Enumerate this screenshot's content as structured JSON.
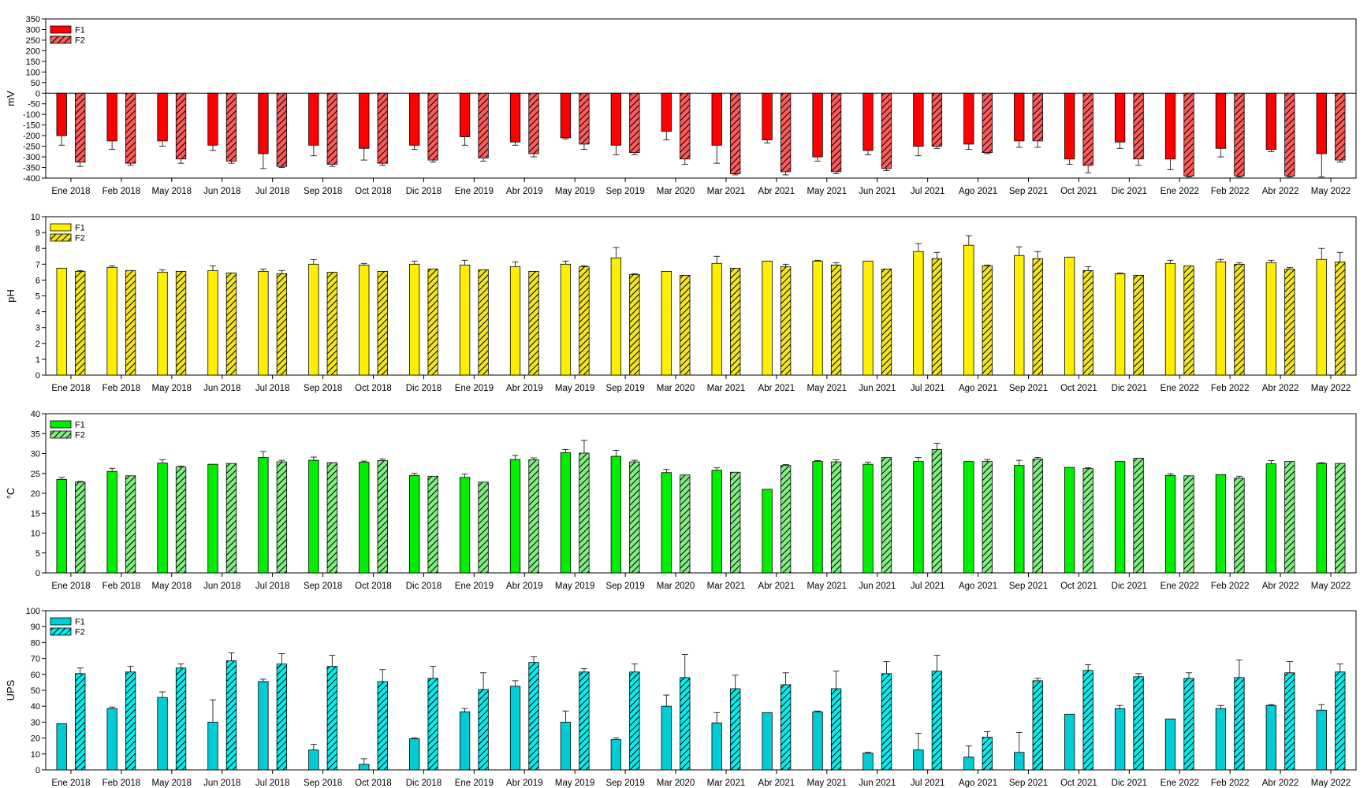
{
  "chart_data": [
    {
      "type": "bar",
      "ylabel": "mV",
      "ylim": [
        -400,
        350
      ],
      "yticks": [
        350,
        300,
        250,
        200,
        150,
        100,
        50,
        0,
        -50,
        -100,
        -150,
        -200,
        -250,
        -300,
        -350,
        -400
      ],
      "legend_position": "top-left",
      "colors": {
        "F1": "#ff0000",
        "F2": "#ff5a5a"
      },
      "categories": [
        "Ene 2018",
        "Feb 2018",
        "May 2018",
        "Jun 2018",
        "Jul 2018",
        "Sep 2018",
        "Oct 2018",
        "Dic 2018",
        "Ene 2019",
        "Abr 2019",
        "May 2019",
        "Sep 2019",
        "Mar 2020",
        "Mar 2021",
        "Abr 2021",
        "May 2021",
        "Jun 2021",
        "Jul 2021",
        "Ago 2021",
        "Sep 2021",
        "Oct 2021",
        "Dic 2021",
        "Ene 2022",
        "Feb 2022",
        "Abr 2022",
        "May 2022"
      ],
      "series": [
        {
          "name": "F1",
          "pattern": "solid",
          "values": [
            -200,
            -225,
            -225,
            -245,
            -285,
            -245,
            -260,
            -245,
            -205,
            -230,
            -210,
            -245,
            -180,
            -245,
            -220,
            -300,
            -270,
            -250,
            -240,
            -225,
            -310,
            -230,
            -310,
            -260,
            -265,
            -285
          ],
          "errors": [
            45,
            40,
            25,
            25,
            70,
            50,
            55,
            20,
            40,
            15,
            5,
            45,
            40,
            85,
            15,
            20,
            20,
            45,
            25,
            30,
            25,
            30,
            50,
            40,
            10,
            110
          ]
        },
        {
          "name": "F2",
          "pattern": "hatched",
          "values": [
            -325,
            -330,
            -310,
            -320,
            -345,
            -335,
            -330,
            -315,
            -305,
            -285,
            -240,
            -280,
            -310,
            -380,
            -370,
            -370,
            -355,
            -250,
            -280,
            -225,
            -340,
            -310,
            -390,
            -390,
            -390,
            -315
          ],
          "errors": [
            20,
            10,
            20,
            10,
            5,
            10,
            10,
            10,
            15,
            15,
            25,
            10,
            25,
            5,
            15,
            10,
            10,
            10,
            5,
            30,
            35,
            30,
            5,
            5,
            5,
            10
          ]
        }
      ]
    },
    {
      "type": "bar",
      "ylabel": "pH",
      "ylim": [
        0,
        10
      ],
      "yticks": [
        10,
        9,
        8,
        7,
        6,
        5,
        4,
        3,
        2,
        1,
        0
      ],
      "legend_position": "top-left",
      "colors": {
        "F1": "#ffee00",
        "F2": "#f5e51d"
      },
      "categories": [
        "Ene 2018",
        "Feb 2018",
        "May 2018",
        "Jun 2018",
        "Jul 2018",
        "Sep 2018",
        "Oct 2018",
        "Dic 2018",
        "Ene 2019",
        "Abr 2019",
        "May 2019",
        "Sep 2019",
        "Mar 2020",
        "Mar 2021",
        "Abr 2021",
        "May 2021",
        "Jun 2021",
        "Jul 2021",
        "Ago 2021",
        "Sep 2021",
        "Oct 2021",
        "Dic 2021",
        "Ene 2022",
        "Feb 2022",
        "Abr 2022",
        "May 2022"
      ],
      "series": [
        {
          "name": "F1",
          "pattern": "solid",
          "values": [
            6.75,
            6.8,
            6.5,
            6.6,
            6.55,
            7.0,
            6.95,
            7.0,
            6.95,
            6.85,
            7.0,
            7.4,
            6.55,
            7.05,
            7.2,
            7.2,
            7.2,
            7.8,
            8.2,
            7.55,
            7.45,
            6.4,
            7.05,
            7.15,
            7.1,
            7.3
          ],
          "errors": [
            0,
            0.1,
            0.15,
            0.3,
            0.15,
            0.3,
            0.1,
            0.2,
            0.3,
            0.3,
            0.2,
            0.65,
            0,
            0.45,
            0,
            0.05,
            0,
            0.5,
            0.6,
            0.55,
            0,
            0.05,
            0.2,
            0.15,
            0.15,
            0.7
          ]
        },
        {
          "name": "F2",
          "pattern": "hatched",
          "values": [
            6.55,
            6.6,
            6.55,
            6.45,
            6.4,
            6.5,
            6.55,
            6.7,
            6.65,
            6.55,
            6.85,
            6.35,
            6.3,
            6.75,
            6.85,
            6.95,
            6.7,
            7.35,
            6.9,
            7.35,
            6.6,
            6.3,
            6.9,
            7.0,
            6.7,
            7.15
          ],
          "errors": [
            0.05,
            0,
            0,
            0,
            0.2,
            0,
            0,
            0,
            0,
            0,
            0.05,
            0.05,
            0,
            0,
            0.15,
            0.15,
            0,
            0.4,
            0.05,
            0.45,
            0.25,
            0,
            0,
            0.1,
            0.1,
            0.6
          ]
        }
      ]
    },
    {
      "type": "bar",
      "ylabel": "°C",
      "ylim": [
        0,
        40
      ],
      "yticks": [
        40,
        35,
        30,
        25,
        20,
        15,
        10,
        5,
        0
      ],
      "legend_position": "top-left",
      "colors": {
        "F1": "#00ee00",
        "F2": "#80ee80"
      },
      "categories": [
        "Ene 2018",
        "Feb 2018",
        "May 2018",
        "Jun 2018",
        "Jul 2018",
        "Sep 2018",
        "Oct 2018",
        "Dic 2018",
        "Ene 2019",
        "Abr 2019",
        "May 2019",
        "Sep 2019",
        "Mar 2020",
        "Mar 2021",
        "Abr 2021",
        "May 2021",
        "Jun 2021",
        "Jul 2021",
        "Ago 2021",
        "Sep 2021",
        "Oct 2021",
        "Dic 2021",
        "Ene 2022",
        "Feb 2022",
        "Abr 2022",
        "May 2022"
      ],
      "series": [
        {
          "name": "F1",
          "pattern": "solid",
          "values": [
            23.5,
            25.5,
            27.6,
            27.3,
            29.0,
            28.3,
            27.8,
            24.5,
            24.0,
            28.5,
            30.2,
            29.3,
            25.2,
            25.8,
            21.0,
            28.0,
            27.3,
            28.0,
            28.0,
            27.0,
            26.5,
            28.0,
            24.5,
            24.7,
            27.4,
            27.5
          ],
          "errors": [
            0.5,
            0.8,
            0.8,
            0,
            1.5,
            0.8,
            0.3,
            0.5,
            0.8,
            1.0,
            0.8,
            1.5,
            0.8,
            0.6,
            0,
            0.2,
            0.5,
            1.0,
            0,
            1.3,
            0,
            0,
            0.4,
            0,
            0.8,
            0.2
          ]
        },
        {
          "name": "F2",
          "pattern": "hatched",
          "values": [
            22.8,
            24.4,
            26.6,
            27.5,
            27.9,
            27.7,
            28.2,
            24.3,
            22.8,
            28.4,
            30.1,
            27.9,
            24.6,
            25.3,
            27.0,
            27.9,
            29.0,
            31.0,
            28.0,
            28.6,
            26.2,
            28.8,
            24.4,
            23.8,
            28.0,
            27.5
          ],
          "errors": [
            0.2,
            0,
            0.2,
            0,
            0.4,
            0,
            0.4,
            0,
            0,
            0.5,
            3.2,
            0.4,
            0,
            0,
            0.2,
            0.5,
            0,
            1.6,
            0.5,
            0.4,
            0.2,
            0,
            0,
            0.5,
            0,
            0
          ]
        }
      ]
    },
    {
      "type": "bar",
      "ylabel": "UPS",
      "ylim": [
        0,
        100
      ],
      "yticks": [
        100,
        90,
        80,
        70,
        60,
        50,
        40,
        30,
        20,
        10,
        0
      ],
      "legend_position": "top-left",
      "colors": {
        "F1": "#00ccd6",
        "F2": "#00eeee"
      },
      "categories": [
        "Ene 2018",
        "Feb 2018",
        "May 2018",
        "Jun 2018",
        "Jul 2018",
        "Sep 2018",
        "Oct 2018",
        "Dic 2018",
        "Ene 2019",
        "Abr 2019",
        "May 2019",
        "Sep 2019",
        "Mar 2020",
        "Mar 2021",
        "Abr 2021",
        "May 2021",
        "Jun 2021",
        "Jul 2021",
        "Ago 2021",
        "Sep 2021",
        "Oct 2021",
        "Dic 2021",
        "Ene 2022",
        "Feb 2022",
        "Abr 2022",
        "May 2022"
      ],
      "series": [
        {
          "name": "F1",
          "pattern": "solid",
          "values": [
            29,
            38.5,
            45.5,
            30,
            55.5,
            12.5,
            3.5,
            19.5,
            36.5,
            52.5,
            30,
            19,
            40,
            29.5,
            36,
            36.5,
            10.5,
            12.5,
            8,
            11,
            35,
            38.5,
            32,
            38.5,
            40.5,
            37.5
          ],
          "errors": [
            0,
            1,
            3.5,
            14,
            1.5,
            3.5,
            3.5,
            0.5,
            2,
            3.5,
            7,
            1,
            7,
            6.5,
            0,
            0.5,
            0.5,
            10.5,
            7,
            12.5,
            0,
            2,
            0,
            2,
            0.5,
            3.5
          ]
        },
        {
          "name": "F2",
          "pattern": "hatched",
          "values": [
            60.5,
            61.5,
            64,
            68.5,
            66.5,
            65,
            55.5,
            57.5,
            50.5,
            67.5,
            61.5,
            61.5,
            58,
            51,
            53.5,
            51,
            60.5,
            62,
            20.5,
            56,
            62.5,
            58.5,
            57.5,
            58,
            61,
            61.5
          ],
          "errors": [
            3.5,
            3.5,
            2.5,
            5,
            6.5,
            7,
            7.5,
            7.5,
            10.5,
            3.5,
            2,
            5,
            14.5,
            8.5,
            7.5,
            11,
            7.5,
            10,
            3.5,
            1.5,
            3.5,
            2,
            3.5,
            11,
            7,
            5
          ]
        }
      ]
    }
  ]
}
